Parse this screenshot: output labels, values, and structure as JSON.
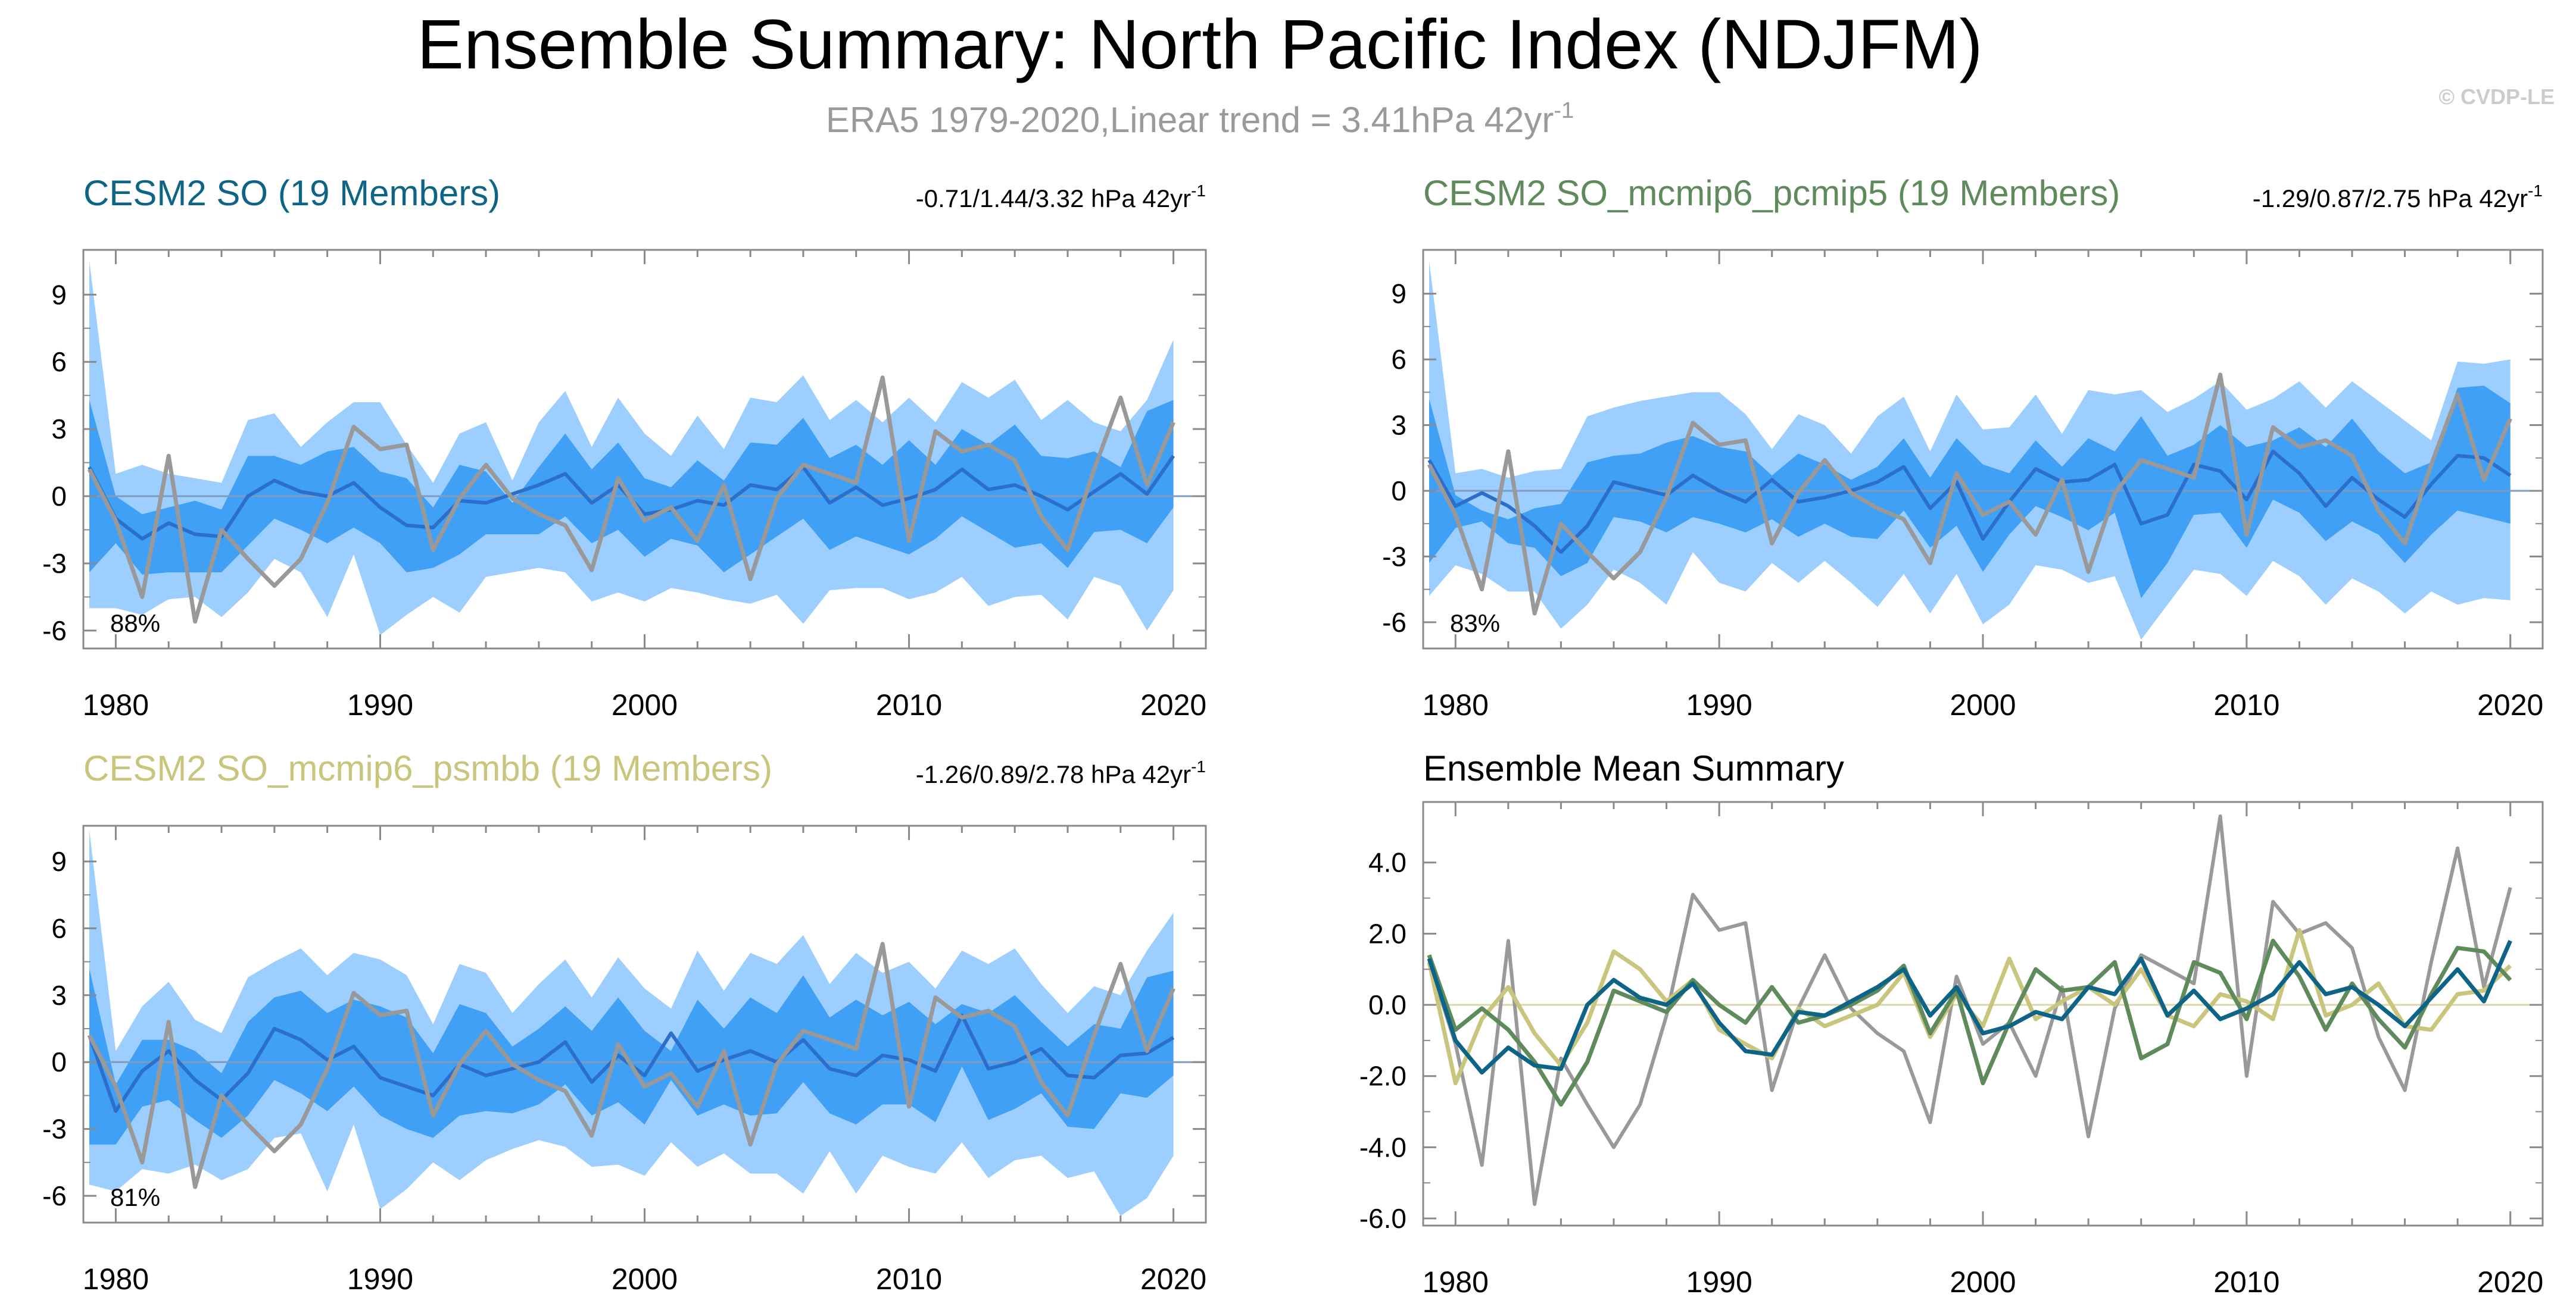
{
  "title": "Ensemble Summary: North Pacific Index (NDJFM)",
  "subtitle": {
    "text": "ERA5 1979-2020,Linear trend = 3.41hPa 42yr",
    "sup": "-1"
  },
  "watermark": "© CVDP-LE",
  "colors": {
    "outer_band": "#9ccfff",
    "inner_band": "#3fa0f5",
    "ens_mean": "#2c6fcb",
    "obs": "#999999",
    "so": "#0e6486",
    "pcmip5": "#5e8a5c",
    "psmbb": "#c9c57d"
  },
  "chart_data": [
    {
      "type": "area",
      "id": "panel-so",
      "title": "CESM2 SO (19 Members)",
      "title_color": "#0e6486",
      "trend_label": "-0.71/1.44/3.32 hPa 42yr",
      "trend_sup": "-1",
      "percent_label": "88%",
      "x": [
        1979,
        1980,
        1981,
        1982,
        1983,
        1984,
        1985,
        1986,
        1987,
        1988,
        1989,
        1990,
        1991,
        1992,
        1993,
        1994,
        1995,
        1996,
        1997,
        1998,
        1999,
        2000,
        2001,
        2002,
        2003,
        2004,
        2005,
        2006,
        2007,
        2008,
        2009,
        2010,
        2011,
        2012,
        2013,
        2014,
        2015,
        2016,
        2017,
        2018,
        2019,
        2020
      ],
      "xticks": [
        1980,
        1990,
        2000,
        2010,
        2020
      ],
      "yticks": [
        -6,
        -3,
        0,
        3,
        6,
        9
      ],
      "ylim": [
        -6.8,
        11.0
      ],
      "outer_upper": [
        10.5,
        1.0,
        1.4,
        1.0,
        0.8,
        0.6,
        3.4,
        3.7,
        2.2,
        3.3,
        4.2,
        4.2,
        2.3,
        0.6,
        2.8,
        3.3,
        0.7,
        3.3,
        4.7,
        2.2,
        4.4,
        2.8,
        1.8,
        3.6,
        2.1,
        4.4,
        4.2,
        5.4,
        3.4,
        4.3,
        3.3,
        4.4,
        3.3,
        5.1,
        4.4,
        5.2,
        3.4,
        4.3,
        3.3,
        2.9,
        4.3,
        7.0
      ],
      "inner_upper": [
        4.3,
        0.0,
        -0.8,
        -0.5,
        -0.2,
        -0.6,
        1.8,
        1.8,
        1.4,
        2.0,
        2.2,
        1.1,
        0.8,
        -0.5,
        1.4,
        1.1,
        -0.3,
        1.3,
        2.8,
        1.2,
        2.4,
        0.8,
        0.4,
        1.6,
        0.7,
        2.4,
        2.3,
        3.5,
        1.7,
        2.3,
        1.4,
        2.5,
        1.4,
        3.0,
        2.3,
        3.2,
        1.8,
        1.7,
        2.0,
        1.3,
        3.8,
        4.3
      ],
      "mean": [
        1.3,
        -1.0,
        -1.9,
        -1.2,
        -1.7,
        -1.8,
        0.0,
        0.7,
        0.2,
        0.0,
        0.6,
        -0.5,
        -1.3,
        -1.4,
        -0.2,
        -0.3,
        0.1,
        0.5,
        1.0,
        -0.3,
        0.5,
        -0.8,
        -0.6,
        -0.2,
        -0.4,
        0.5,
        0.3,
        1.3,
        -0.3,
        0.4,
        -0.4,
        -0.1,
        0.3,
        1.2,
        0.3,
        0.5,
        0.0,
        -0.6,
        0.2,
        1.0,
        0.1,
        1.8
      ],
      "inner_lower": [
        -3.4,
        -2.1,
        -3.5,
        -3.4,
        -3.4,
        -3.4,
        -2.2,
        -1.0,
        -1.5,
        -2.1,
        -1.4,
        -2.1,
        -3.4,
        -3.2,
        -2.6,
        -1.7,
        -1.7,
        -1.7,
        -0.9,
        -2.1,
        -1.5,
        -2.7,
        -1.9,
        -2.2,
        -3.4,
        -2.6,
        -1.8,
        -1.0,
        -2.4,
        -1.8,
        -2.2,
        -2.6,
        -1.9,
        -0.9,
        -1.6,
        -2.3,
        -2.1,
        -3.2,
        -1.6,
        -1.5,
        -2.1,
        -0.5
      ],
      "outer_lower": [
        -5.0,
        -5.0,
        -5.3,
        -4.6,
        -4.5,
        -5.4,
        -4.3,
        -2.8,
        -3.4,
        -5.4,
        -2.6,
        -6.2,
        -5.3,
        -4.5,
        -5.2,
        -3.6,
        -3.4,
        -3.2,
        -3.4,
        -4.7,
        -4.3,
        -4.7,
        -4.1,
        -4.3,
        -4.6,
        -4.8,
        -4.4,
        -5.7,
        -4.2,
        -4.1,
        -4.1,
        -4.6,
        -4.3,
        -3.6,
        -4.9,
        -4.5,
        -4.4,
        -5.5,
        -3.6,
        -4.0,
        -6.0,
        -4.2
      ],
      "obs": [
        1.2,
        -1.1,
        -4.5,
        1.8,
        -5.6,
        -1.5,
        -2.8,
        -4.0,
        -2.8,
        -0.3,
        3.1,
        2.1,
        2.3,
        -2.4,
        -0.1,
        1.4,
        -0.1,
        -0.8,
        -1.3,
        -3.3,
        0.8,
        -1.1,
        -0.5,
        -2.0,
        0.5,
        -3.7,
        -0.1,
        1.4,
        1.0,
        0.6,
        5.3,
        -2.0,
        2.9,
        2.0,
        2.3,
        1.6,
        -0.9,
        -2.4,
        1.2,
        4.4,
        0.5,
        3.3
      ]
    },
    {
      "type": "area",
      "id": "panel-pcmip5",
      "title": "CESM2 SO_mcmip6_pcmip5 (19 Members)",
      "title_color": "#5e8a5c",
      "trend_label": "-1.29/0.87/2.75 hPa 42yr",
      "trend_sup": "-1",
      "percent_label": "83%",
      "x": [
        1979,
        1980,
        1981,
        1982,
        1983,
        1984,
        1985,
        1986,
        1987,
        1988,
        1989,
        1990,
        1991,
        1992,
        1993,
        1994,
        1995,
        1996,
        1997,
        1998,
        1999,
        2000,
        2001,
        2002,
        2003,
        2004,
        2005,
        2006,
        2007,
        2008,
        2009,
        2010,
        2011,
        2012,
        2013,
        2014,
        2015,
        2016,
        2017,
        2018,
        2019,
        2020
      ],
      "xticks": [
        1980,
        1990,
        2000,
        2010,
        2020
      ],
      "yticks": [
        -6,
        -3,
        0,
        3,
        6,
        9
      ],
      "ylim": [
        -7.2,
        11.0
      ],
      "outer_upper": [
        10.5,
        0.8,
        1.0,
        0.6,
        0.9,
        1.0,
        3.4,
        3.8,
        4.1,
        4.3,
        4.5,
        4.5,
        3.5,
        1.9,
        3.5,
        3.0,
        1.7,
        3.4,
        4.3,
        1.8,
        4.4,
        2.8,
        2.9,
        4.4,
        2.6,
        4.6,
        4.4,
        4.6,
        3.6,
        4.2,
        5.0,
        3.7,
        4.2,
        5.0,
        3.8,
        5.0,
        4.1,
        3.2,
        2.3,
        5.9,
        5.8,
        6.0
      ],
      "inner_upper": [
        4.2,
        -0.2,
        -0.9,
        -1.3,
        -0.8,
        -0.6,
        1.3,
        1.6,
        1.7,
        2.2,
        2.5,
        2.0,
        1.8,
        0.7,
        1.7,
        1.2,
        0.5,
        1.1,
        2.4,
        0.6,
        2.4,
        1.2,
        0.8,
        2.3,
        1.1,
        2.4,
        1.8,
        3.4,
        1.6,
        2.1,
        3.0,
        2.0,
        2.3,
        2.9,
        2.0,
        3.3,
        1.8,
        0.8,
        1.3,
        4.7,
        4.8,
        4.0
      ],
      "mean": [
        1.4,
        -0.7,
        -0.1,
        -0.7,
        -1.6,
        -2.8,
        -1.6,
        0.4,
        0.1,
        -0.2,
        0.7,
        0.0,
        -0.5,
        0.5,
        -0.5,
        -0.3,
        0.0,
        0.4,
        1.1,
        -0.8,
        0.4,
        -2.2,
        -0.5,
        1.0,
        0.4,
        0.5,
        1.2,
        -1.5,
        -1.1,
        1.2,
        0.9,
        -0.4,
        1.8,
        0.8,
        -0.7,
        0.6,
        -0.4,
        -1.2,
        0.3,
        1.6,
        1.5,
        0.7
      ],
      "inner_lower": [
        -3.3,
        -1.7,
        -1.4,
        -2.4,
        -2.6,
        -3.9,
        -3.3,
        -1.2,
        -1.4,
        -1.9,
        -1.2,
        -1.5,
        -1.9,
        -1.3,
        -2.1,
        -1.5,
        -2.1,
        -2.2,
        -0.9,
        -2.6,
        -1.6,
        -3.7,
        -2.0,
        -0.7,
        -1.2,
        -1.8,
        -1.0,
        -4.9,
        -3.3,
        -1.1,
        -1.0,
        -2.6,
        -0.4,
        -1.0,
        -2.3,
        -1.4,
        -2.0,
        -3.3,
        -2.0,
        -0.9,
        -1.2,
        -1.5
      ],
      "outer_lower": [
        -4.8,
        -3.4,
        -3.8,
        -4.6,
        -4.6,
        -6.3,
        -5.2,
        -3.6,
        -4.2,
        -5.2,
        -2.8,
        -4.2,
        -4.6,
        -3.3,
        -4.2,
        -3.2,
        -4.2,
        -5.3,
        -3.8,
        -5.6,
        -3.8,
        -6.1,
        -5.2,
        -3.4,
        -3.6,
        -4.2,
        -3.9,
        -6.8,
        -5.2,
        -3.6,
        -3.8,
        -4.8,
        -3.2,
        -3.9,
        -5.2,
        -4.0,
        -4.6,
        -5.6,
        -4.6,
        -5.2,
        -4.9,
        -5.0
      ],
      "obs": [
        1.2,
        -1.1,
        -4.5,
        1.8,
        -5.6,
        -1.5,
        -2.8,
        -4.0,
        -2.8,
        -0.3,
        3.1,
        2.1,
        2.3,
        -2.4,
        -0.1,
        1.4,
        -0.1,
        -0.8,
        -1.3,
        -3.3,
        0.8,
        -1.1,
        -0.5,
        -2.0,
        0.5,
        -3.7,
        -0.1,
        1.4,
        1.0,
        0.6,
        5.3,
        -2.0,
        2.9,
        2.0,
        2.3,
        1.6,
        -0.9,
        -2.4,
        1.2,
        4.4,
        0.5,
        3.3
      ]
    },
    {
      "type": "area",
      "id": "panel-psmbb",
      "title": "CESM2 SO_mcmip6_psmbb (19 Members)",
      "title_color": "#c9c57d",
      "trend_label": "-1.26/0.89/2.78 hPa 42yr",
      "trend_sup": "-1",
      "percent_label": "81%",
      "x": [
        1979,
        1980,
        1981,
        1982,
        1983,
        1984,
        1985,
        1986,
        1987,
        1988,
        1989,
        1990,
        1991,
        1992,
        1993,
        1994,
        1995,
        1996,
        1997,
        1998,
        1999,
        2000,
        2001,
        2002,
        2003,
        2004,
        2005,
        2006,
        2007,
        2008,
        2009,
        2010,
        2011,
        2012,
        2013,
        2014,
        2015,
        2016,
        2017,
        2018,
        2019,
        2020
      ],
      "xticks": [
        1980,
        1990,
        2000,
        2010,
        2020
      ],
      "yticks": [
        -6,
        -3,
        0,
        3,
        6,
        9
      ],
      "ylim": [
        -7.2,
        10.6
      ],
      "outer_upper": [
        10.4,
        0.5,
        2.5,
        3.6,
        1.9,
        1.3,
        3.8,
        4.5,
        5.1,
        3.9,
        4.9,
        4.6,
        3.9,
        1.7,
        4.4,
        4.0,
        2.2,
        3.5,
        4.6,
        2.9,
        4.7,
        3.3,
        2.4,
        5.0,
        3.2,
        4.9,
        4.4,
        5.7,
        3.5,
        4.9,
        4.0,
        4.5,
        3.3,
        5.0,
        4.4,
        5.1,
        3.5,
        2.2,
        3.4,
        3.0,
        5.0,
        6.7
      ],
      "inner_upper": [
        4.2,
        -1.0,
        1.0,
        1.0,
        0.5,
        -0.5,
        1.8,
        2.9,
        3.2,
        2.2,
        2.8,
        2.5,
        2.0,
        0.4,
        2.6,
        2.2,
        0.7,
        1.5,
        2.5,
        1.4,
        2.9,
        1.4,
        0.5,
        2.8,
        1.5,
        2.9,
        2.2,
        3.9,
        2.0,
        2.8,
        2.1,
        2.7,
        1.7,
        2.6,
        2.2,
        3.0,
        1.8,
        0.7,
        1.7,
        1.5,
        3.8,
        4.1
      ],
      "mean": [
        1.2,
        -2.2,
        -0.4,
        0.5,
        -0.8,
        -1.7,
        -0.5,
        1.5,
        1.0,
        0.1,
        0.7,
        -0.7,
        -1.1,
        -1.5,
        -0.1,
        -0.6,
        -0.3,
        0.0,
        0.9,
        -0.9,
        0.3,
        -0.6,
        1.3,
        -0.4,
        0.1,
        0.5,
        0.0,
        1.0,
        -0.3,
        -0.6,
        0.3,
        0.1,
        -0.4,
        2.1,
        -0.3,
        0.0,
        0.6,
        -0.6,
        -0.7,
        0.3,
        0.4,
        1.1
      ],
      "inner_lower": [
        -3.7,
        -3.7,
        -2.0,
        -1.7,
        -2.6,
        -3.4,
        -2.4,
        -0.8,
        -1.4,
        -2.2,
        -1.1,
        -2.4,
        -3.0,
        -3.4,
        -2.4,
        -2.2,
        -2.3,
        -1.9,
        -1.0,
        -2.4,
        -1.8,
        -2.8,
        -0.8,
        -2.4,
        -1.9,
        -2.4,
        -2.3,
        -0.9,
        -2.3,
        -2.8,
        -1.9,
        -1.9,
        -2.7,
        -0.2,
        -2.6,
        -2.1,
        -1.4,
        -2.9,
        -3.0,
        -1.4,
        -1.6,
        -0.6
      ],
      "outer_lower": [
        -5.5,
        -5.8,
        -4.8,
        -5.0,
        -4.6,
        -5.3,
        -4.8,
        -3.4,
        -3.2,
        -5.8,
        -2.8,
        -6.6,
        -5.7,
        -4.5,
        -5.3,
        -4.4,
        -3.9,
        -3.5,
        -3.8,
        -4.7,
        -4.6,
        -5.1,
        -3.6,
        -4.7,
        -4.1,
        -5.0,
        -5.0,
        -5.9,
        -4.0,
        -5.9,
        -4.2,
        -4.7,
        -5.0,
        -3.6,
        -5.2,
        -4.4,
        -4.2,
        -5.2,
        -4.9,
        -6.9,
        -6.1,
        -4.2
      ],
      "obs": [
        1.2,
        -1.1,
        -4.5,
        1.8,
        -5.6,
        -1.5,
        -2.8,
        -4.0,
        -2.8,
        -0.3,
        3.1,
        2.1,
        2.3,
        -2.4,
        -0.1,
        1.4,
        -0.1,
        -0.8,
        -1.3,
        -3.3,
        0.8,
        -1.1,
        -0.5,
        -2.0,
        0.5,
        -3.7,
        -0.1,
        1.4,
        1.0,
        0.6,
        5.3,
        -2.0,
        2.9,
        2.0,
        2.3,
        1.6,
        -0.9,
        -2.4,
        1.2,
        4.4,
        0.5,
        3.3
      ]
    },
    {
      "type": "line",
      "id": "panel-summary",
      "title": "Ensemble Mean Summary",
      "title_color": "#000000",
      "x": [
        1979,
        1980,
        1981,
        1982,
        1983,
        1984,
        1985,
        1986,
        1987,
        1988,
        1989,
        1990,
        1991,
        1992,
        1993,
        1994,
        1995,
        1996,
        1997,
        1998,
        1999,
        2000,
        2001,
        2002,
        2003,
        2004,
        2005,
        2006,
        2007,
        2008,
        2009,
        2010,
        2011,
        2012,
        2013,
        2014,
        2015,
        2016,
        2017,
        2018,
        2019,
        2020
      ],
      "xticks": [
        1980,
        1990,
        2000,
        2010,
        2020
      ],
      "yticks": [
        -6.0,
        -4.0,
        -2.0,
        0.0,
        2.0,
        4.0
      ],
      "ytick_labels": [
        "-6.0",
        "-4.0",
        "-2.0",
        "0.0",
        "2.0",
        "4.0"
      ],
      "ylim": [
        -6.2,
        5.7
      ],
      "series": [
        {
          "name": "ERA5",
          "color": "#999999",
          "values": [
            1.2,
            -1.1,
            -4.5,
            1.8,
            -5.6,
            -1.5,
            -2.8,
            -4.0,
            -2.8,
            -0.3,
            3.1,
            2.1,
            2.3,
            -2.4,
            -0.1,
            1.4,
            -0.1,
            -0.8,
            -1.3,
            -3.3,
            0.8,
            -1.1,
            -0.5,
            -2.0,
            0.5,
            -3.7,
            -0.1,
            1.4,
            1.0,
            0.6,
            5.3,
            -2.0,
            2.9,
            2.0,
            2.3,
            1.6,
            -0.9,
            -2.4,
            1.2,
            4.4,
            0.5,
            3.3
          ]
        },
        {
          "name": "CESM2 SO_mcmip6_psmbb",
          "color": "#c9c57d",
          "values": [
            1.2,
            -2.2,
            -0.4,
            0.5,
            -0.8,
            -1.7,
            -0.5,
            1.5,
            1.0,
            0.1,
            0.7,
            -0.7,
            -1.1,
            -1.5,
            -0.1,
            -0.6,
            -0.3,
            0.0,
            0.9,
            -0.9,
            0.3,
            -0.6,
            1.3,
            -0.4,
            0.1,
            0.5,
            0.0,
            1.0,
            -0.3,
            -0.6,
            0.3,
            0.1,
            -0.4,
            2.1,
            -0.3,
            0.0,
            0.6,
            -0.6,
            -0.7,
            0.3,
            0.4,
            1.1
          ]
        },
        {
          "name": "CESM2 SO_mcmip6_pcmip5",
          "color": "#5e8a5c",
          "values": [
            1.4,
            -0.7,
            -0.1,
            -0.7,
            -1.6,
            -2.8,
            -1.6,
            0.4,
            0.1,
            -0.2,
            0.7,
            0.0,
            -0.5,
            0.5,
            -0.5,
            -0.3,
            0.0,
            0.4,
            1.1,
            -0.8,
            0.4,
            -2.2,
            -0.5,
            1.0,
            0.4,
            0.5,
            1.2,
            -1.5,
            -1.1,
            1.2,
            0.9,
            -0.4,
            1.8,
            0.8,
            -0.7,
            0.6,
            -0.4,
            -1.2,
            0.3,
            1.6,
            1.5,
            0.7
          ]
        },
        {
          "name": "CESM2 SO",
          "color": "#0e6486",
          "values": [
            1.3,
            -1.0,
            -1.9,
            -1.2,
            -1.7,
            -1.8,
            0.0,
            0.7,
            0.2,
            0.0,
            0.6,
            -0.5,
            -1.3,
            -1.4,
            -0.2,
            -0.3,
            0.1,
            0.5,
            1.0,
            -0.3,
            0.5,
            -0.8,
            -0.6,
            -0.2,
            -0.4,
            0.5,
            0.3,
            1.3,
            -0.3,
            0.4,
            -0.4,
            -0.1,
            0.3,
            1.2,
            0.3,
            0.5,
            0.0,
            -0.6,
            0.2,
            1.0,
            0.1,
            1.8
          ]
        }
      ]
    }
  ]
}
